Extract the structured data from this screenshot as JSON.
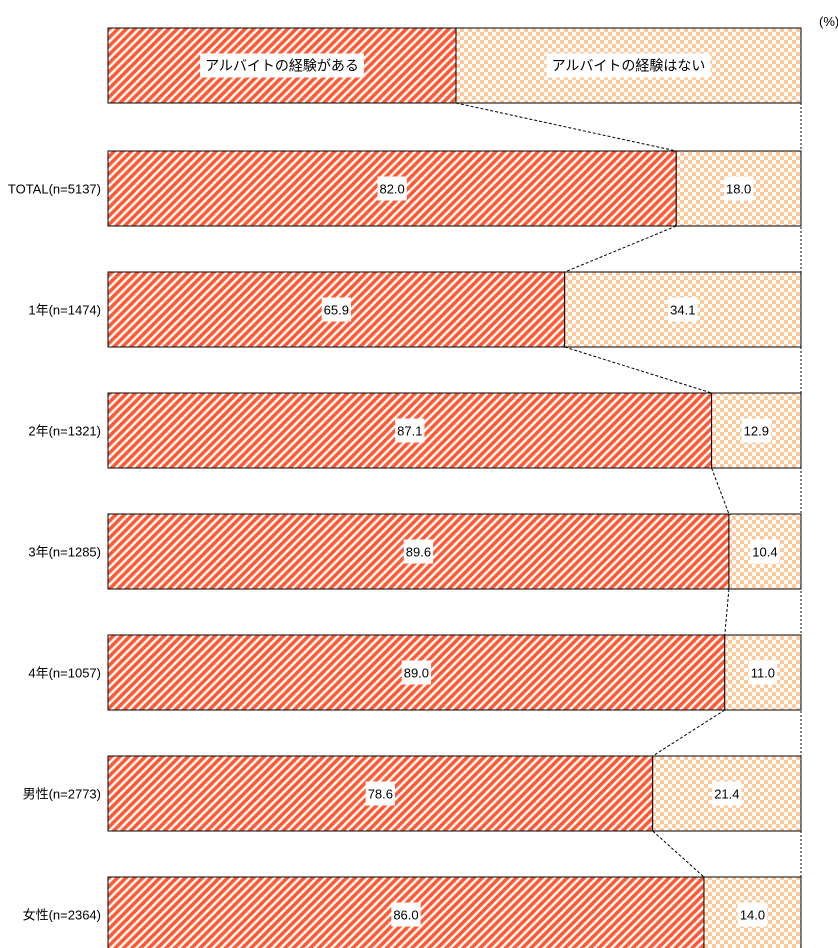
{
  "chart_data": {
    "type": "bar",
    "orientation": "horizontal",
    "stacked": "100%",
    "unit": "(%)",
    "categories": [
      "TOTAL(n=5137)",
      "1年(n=1474)",
      "2年(n=1321)",
      "3年(n=1285)",
      "4年(n=1057)",
      "男性(n=2773)",
      "女性(n=2364)"
    ],
    "series": [
      {
        "name": "アルバイトの経験がある",
        "values": [
          82.0,
          65.9,
          87.1,
          89.6,
          89.0,
          78.6,
          86.0
        ],
        "color": "#ff5a36",
        "pattern": "diagonal-stripes"
      },
      {
        "name": "アルバイトの経験はない",
        "values": [
          18.0,
          34.1,
          12.9,
          10.4,
          11.0,
          21.4,
          14.0
        ],
        "color": "#ffc99a",
        "pattern": "checker"
      }
    ],
    "value_labels": [
      [
        "82.0",
        "65.9",
        "87.1",
        "89.6",
        "89.0",
        "78.6",
        "86.0"
      ],
      [
        "18.0",
        "34.1",
        "12.9",
        "10.4",
        "11.0",
        "21.4",
        "14.0"
      ]
    ],
    "legend": "top",
    "connector_lines": true,
    "grid": false
  }
}
